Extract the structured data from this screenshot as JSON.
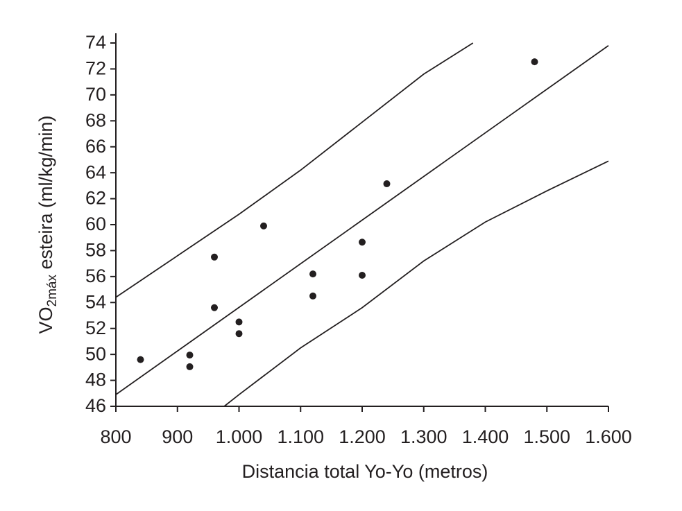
{
  "chart_data": {
    "type": "scatter",
    "x_label": "Distancia total Yo-Yo (metros)",
    "y_label": {
      "main": "VO",
      "subscript": "2máx",
      "rest": " esteira (ml/kg/min)"
    },
    "color": "#231f20",
    "points": {
      "x": [
        840,
        920,
        920,
        960,
        960,
        1000,
        1000,
        1040,
        1120,
        1120,
        1200,
        1200,
        1240,
        1480
      ],
      "y": [
        49.6,
        49.95,
        49.05,
        57.5,
        53.6,
        52.5,
        51.6,
        59.9,
        56.2,
        54.5,
        58.65,
        56.1,
        63.15,
        72.55
      ]
    },
    "lines": [
      {
        "x": [
          800,
          1600
        ],
        "y": [
          46.9,
          73.8
        ]
      },
      {
        "x": [
          800,
          900,
          1000,
          1100,
          1200,
          1300,
          1380
        ],
        "y": [
          54.4,
          57.6,
          60.8,
          64.2,
          67.9,
          71.6,
          74
        ]
      },
      {
        "x": [
          976,
          1000,
          1100,
          1200,
          1300,
          1400,
          1500,
          1600
        ],
        "y": [
          46,
          46.9,
          50.5,
          53.6,
          57.2,
          60.2,
          62.6,
          64.9
        ]
      }
    ],
    "xlim": [
      800,
      1600
    ],
    "ylim": [
      46,
      74
    ],
    "xticks": [
      800,
      900,
      {
        "value": 1000,
        "label": "1.000"
      },
      {
        "value": 1100,
        "label": "1.100"
      },
      {
        "value": 1200,
        "label": "1.200"
      },
      {
        "value": 1300,
        "label": "1.300"
      },
      {
        "value": 1400,
        "label": "1.400"
      },
      {
        "value": 1500,
        "label": "1.500"
      },
      {
        "value": 1600,
        "label": "1.600"
      }
    ],
    "yticks": [
      46,
      48,
      50,
      52,
      54,
      56,
      58,
      60,
      62,
      64,
      66,
      68,
      70,
      72,
      74
    ],
    "grid": false
  }
}
